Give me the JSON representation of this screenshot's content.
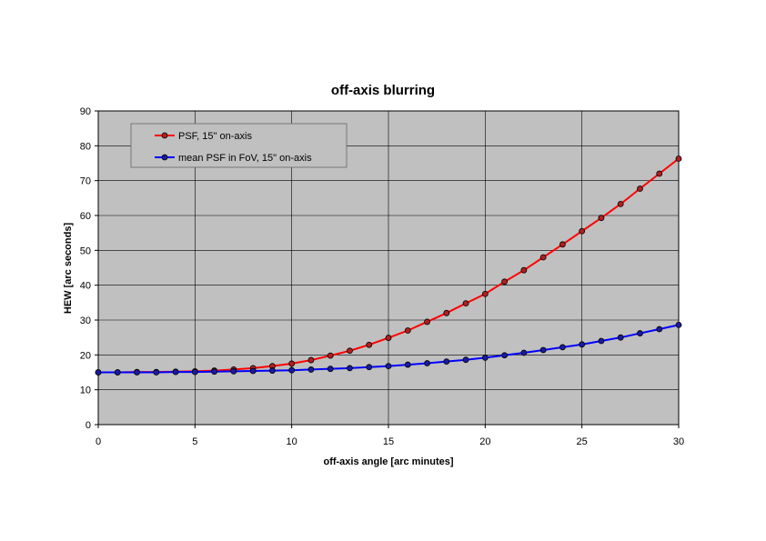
{
  "chart_data": {
    "type": "line",
    "title": "off-axis blurring",
    "xlabel": "off-axis angle [arc minutes]",
    "ylabel": "HEW [arc seconds]",
    "xlim": [
      0,
      30
    ],
    "ylim": [
      0,
      90
    ],
    "xticks": [
      0,
      5,
      10,
      15,
      20,
      25,
      30
    ],
    "yticks": [
      0,
      10,
      20,
      30,
      40,
      50,
      60,
      70,
      80,
      90
    ],
    "grid": true,
    "legend_position": "top-left",
    "background_color": "#c0c0c0",
    "x": [
      0,
      1,
      2,
      3,
      4,
      5,
      6,
      7,
      8,
      9,
      10,
      11,
      12,
      13,
      14,
      15,
      16,
      17,
      18,
      19,
      20,
      21,
      22,
      23,
      24,
      25,
      26,
      27,
      28,
      29,
      30
    ],
    "series": [
      {
        "name": "PSF, 15\" on-axis",
        "color": "#ff0000",
        "marker_color": "#b02020",
        "values": [
          15.0,
          15.0,
          15.1,
          15.1,
          15.2,
          15.3,
          15.5,
          15.8,
          16.2,
          16.8,
          17.5,
          18.5,
          19.8,
          21.2,
          22.9,
          24.9,
          27.0,
          29.5,
          32.0,
          34.8,
          37.5,
          41.0,
          44.3,
          48.0,
          51.7,
          55.5,
          59.3,
          63.3,
          67.7,
          72.0,
          76.3
        ]
      },
      {
        "name": "mean PSF in FoV, 15\" on-axis",
        "color": "#0000ff",
        "marker_color": "#1a1aa0",
        "values": [
          15.0,
          15.0,
          15.0,
          15.0,
          15.1,
          15.1,
          15.2,
          15.3,
          15.4,
          15.5,
          15.6,
          15.8,
          16.0,
          16.2,
          16.5,
          16.8,
          17.2,
          17.6,
          18.1,
          18.6,
          19.2,
          19.9,
          20.6,
          21.4,
          22.2,
          23.0,
          24.0,
          25.0,
          26.2,
          27.4,
          28.6
        ]
      }
    ]
  }
}
